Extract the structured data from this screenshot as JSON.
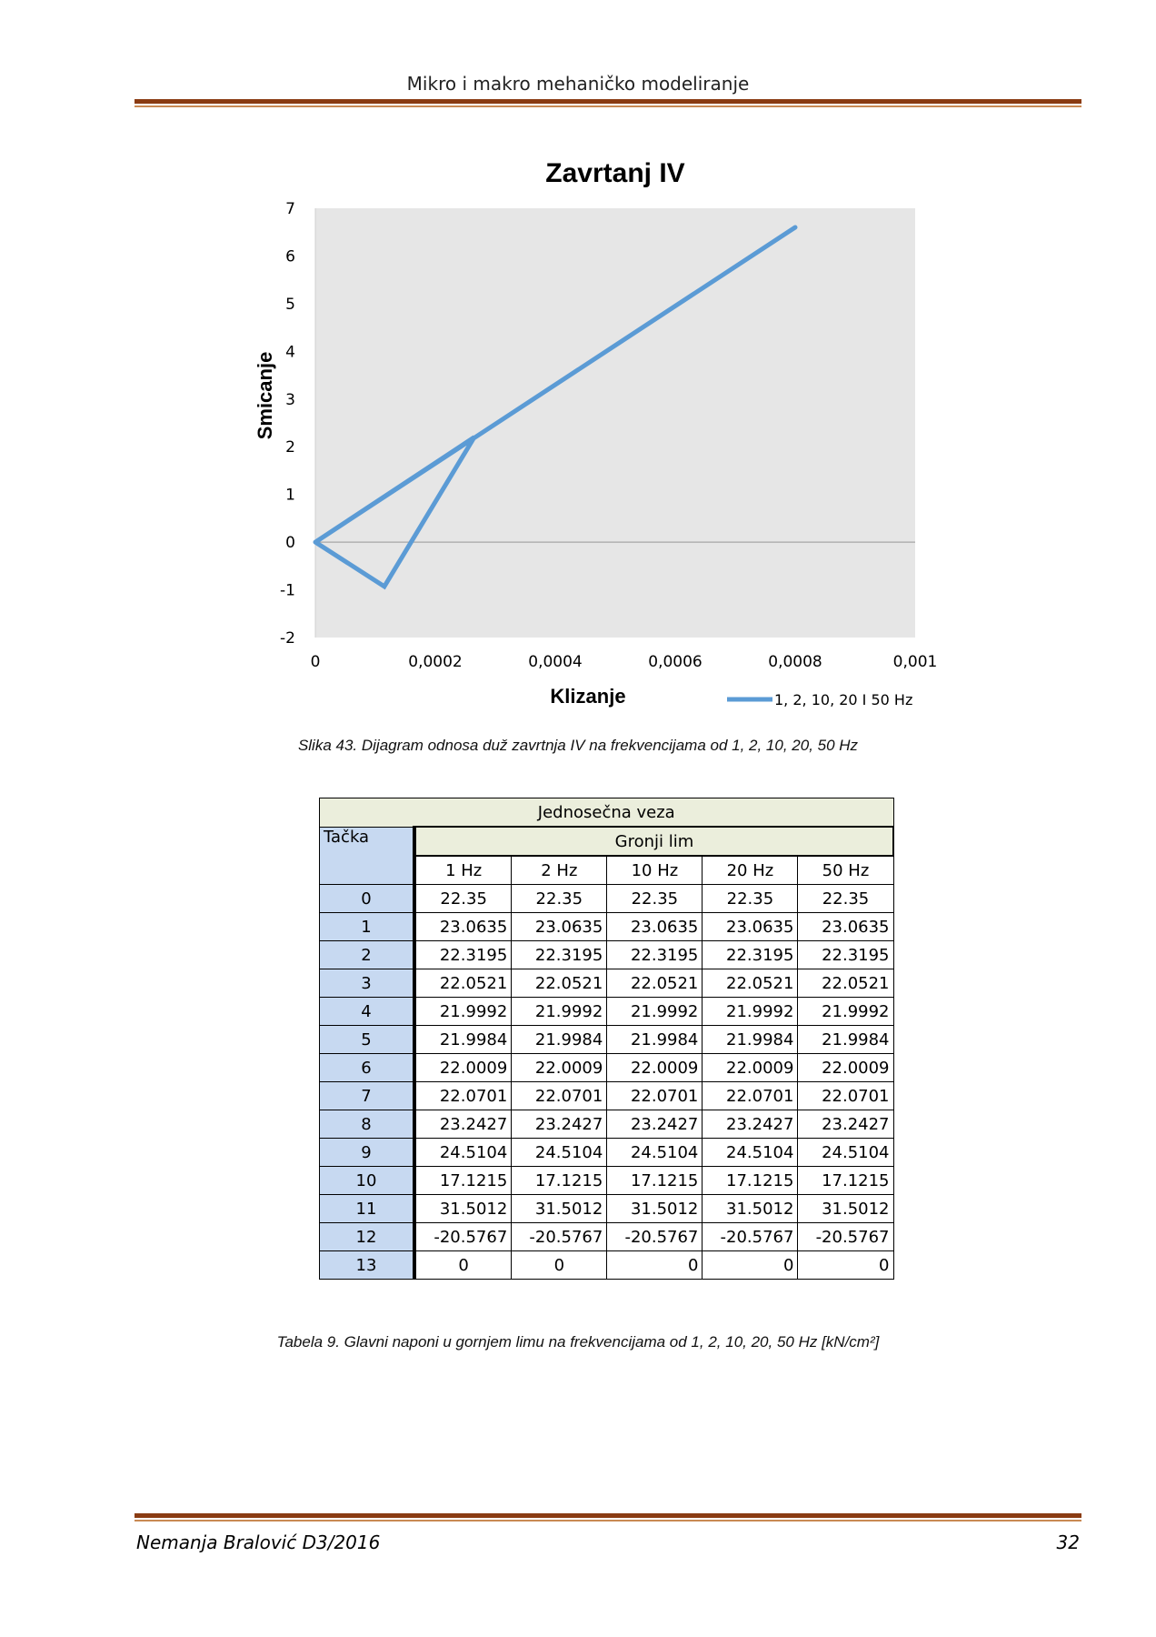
{
  "header": {
    "title": "Mikro i makro mehaničko modeliranje"
  },
  "chart_data": {
    "type": "line",
    "title": "Zavrtanj IV",
    "xlabel": "Klizanje",
    "ylabel": "Smicanje",
    "xlim": [
      0,
      0.001
    ],
    "ylim": [
      -2,
      7
    ],
    "x_ticks": [
      "0",
      "0,0002",
      "0,0004",
      "0,0006",
      "0,0008",
      "0,001"
    ],
    "y_ticks": [
      "-2",
      "-1",
      "0",
      "1",
      "2",
      "3",
      "4",
      "5",
      "6",
      "7"
    ],
    "grid": false,
    "background": "#e6e6e6",
    "line_color": "#5b9bd5",
    "legend_position": "bottom-right",
    "series": [
      {
        "name": "1, 2, 10, 20 I 50 Hz",
        "points": [
          [
            0,
            0
          ],
          [
            0.000115,
            -0.93
          ],
          [
            0.000265,
            2.2
          ],
          [
            0,
            0
          ],
          [
            0.0008,
            6.6
          ]
        ]
      }
    ]
  },
  "figure_caption": "Slika 43.  Dijagram odnosa duž zavrtnja IV na frekvencijama od 1, 2, 10, 20, 50 Hz",
  "table": {
    "group_title": "Jednosečna veza",
    "row_header": "Tačka",
    "subgroup_title": "Gronji lim",
    "columns": [
      "1 Hz",
      "2 Hz",
      "10 Hz",
      "20 Hz",
      "50 Hz"
    ],
    "rows": [
      [
        "0",
        "22.35",
        "22.35",
        "22.35",
        "22.35",
        "22.35"
      ],
      [
        "1",
        "23.0635",
        "23.0635",
        "23.0635",
        "23.0635",
        "23.0635"
      ],
      [
        "2",
        "22.3195",
        "22.3195",
        "22.3195",
        "22.3195",
        "22.3195"
      ],
      [
        "3",
        "22.0521",
        "22.0521",
        "22.0521",
        "22.0521",
        "22.0521"
      ],
      [
        "4",
        "21.9992",
        "21.9992",
        "21.9992",
        "21.9992",
        "21.9992"
      ],
      [
        "5",
        "21.9984",
        "21.9984",
        "21.9984",
        "21.9984",
        "21.9984"
      ],
      [
        "6",
        "22.0009",
        "22.0009",
        "22.0009",
        "22.0009",
        "22.0009"
      ],
      [
        "7",
        "22.0701",
        "22.0701",
        "22.0701",
        "22.0701",
        "22.0701"
      ],
      [
        "8",
        "23.2427",
        "23.2427",
        "23.2427",
        "23.2427",
        "23.2427"
      ],
      [
        "9",
        "24.5104",
        "24.5104",
        "24.5104",
        "24.5104",
        "24.5104"
      ],
      [
        "10",
        "17.1215",
        "17.1215",
        "17.1215",
        "17.1215",
        "17.1215"
      ],
      [
        "11",
        "31.5012",
        "31.5012",
        "31.5012",
        "31.5012",
        "31.5012"
      ],
      [
        "12",
        "-20.5767",
        "-20.5767",
        "-20.5767",
        "-20.5767",
        "-20.5767"
      ],
      [
        "13",
        "0",
        "0",
        "0",
        "0",
        "0"
      ]
    ]
  },
  "table_caption": "Tabela 9. Glavni naponi u gornjem limu na frekvencijama od 1, 2, 10, 20, 50 Hz  [kN/cm²]",
  "footer": {
    "author": "Nemanja Bralović D3/2016",
    "page_number": "32"
  }
}
